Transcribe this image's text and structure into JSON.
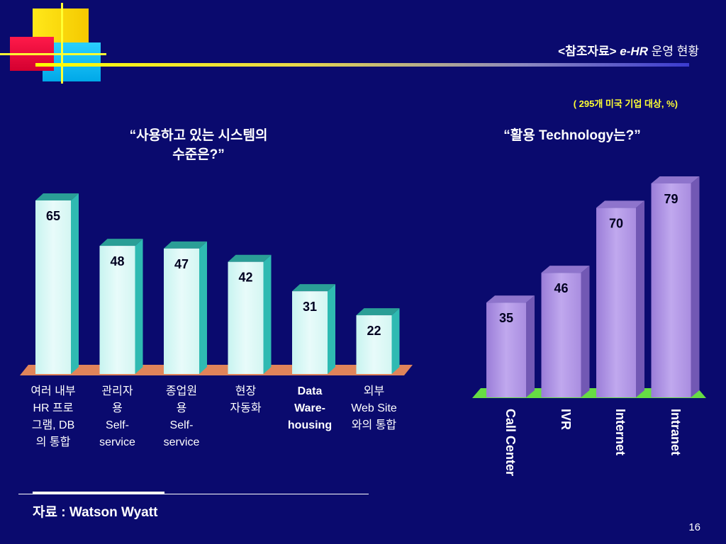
{
  "header": {
    "title_prefix": "<참조자료>",
    "title_code": "e-HR",
    "title_suffix": "운영 현황"
  },
  "note": "( 295개 미국 기업 대상, %)",
  "source": "자료 : Watson Wyatt",
  "page_number": "16",
  "colors": {
    "background": "#0a0a6e",
    "left_bar_front": "#e8fbfa",
    "left_bar_side": "#2fbab2",
    "left_bar_top": "#2a9e96",
    "left_floor": "#e0845a",
    "right_bar_front": "#a98de0",
    "right_bar_side": "#7258b4",
    "right_bar_top": "#8e74cc",
    "right_floor": "#66dd44",
    "accent_yellow": "#ffff33"
  },
  "chart_data": [
    {
      "type": "bar",
      "title": "“사용하고 있는 시스템의\n수준은?”",
      "categories": [
        "여러 내부\nHR 프로\n그램, DB\n의 통합",
        "관리자\n용\nSelf-\nservice",
        "종업원\n용\nSelf-\nservice",
        "현장\n자동화",
        "Data\nWare-\nhousing",
        "외부\nWeb Site\n와의 통합"
      ],
      "values": [
        65,
        48,
        47,
        42,
        31,
        22
      ],
      "ylim": [
        0,
        65
      ]
    },
    {
      "type": "bar",
      "title": "“활용 Technology는?”",
      "categories": [
        "Call Center",
        "IVR",
        "Internet",
        "Intranet"
      ],
      "values": [
        35,
        46,
        70,
        79
      ],
      "ylim": [
        0,
        79
      ]
    }
  ]
}
